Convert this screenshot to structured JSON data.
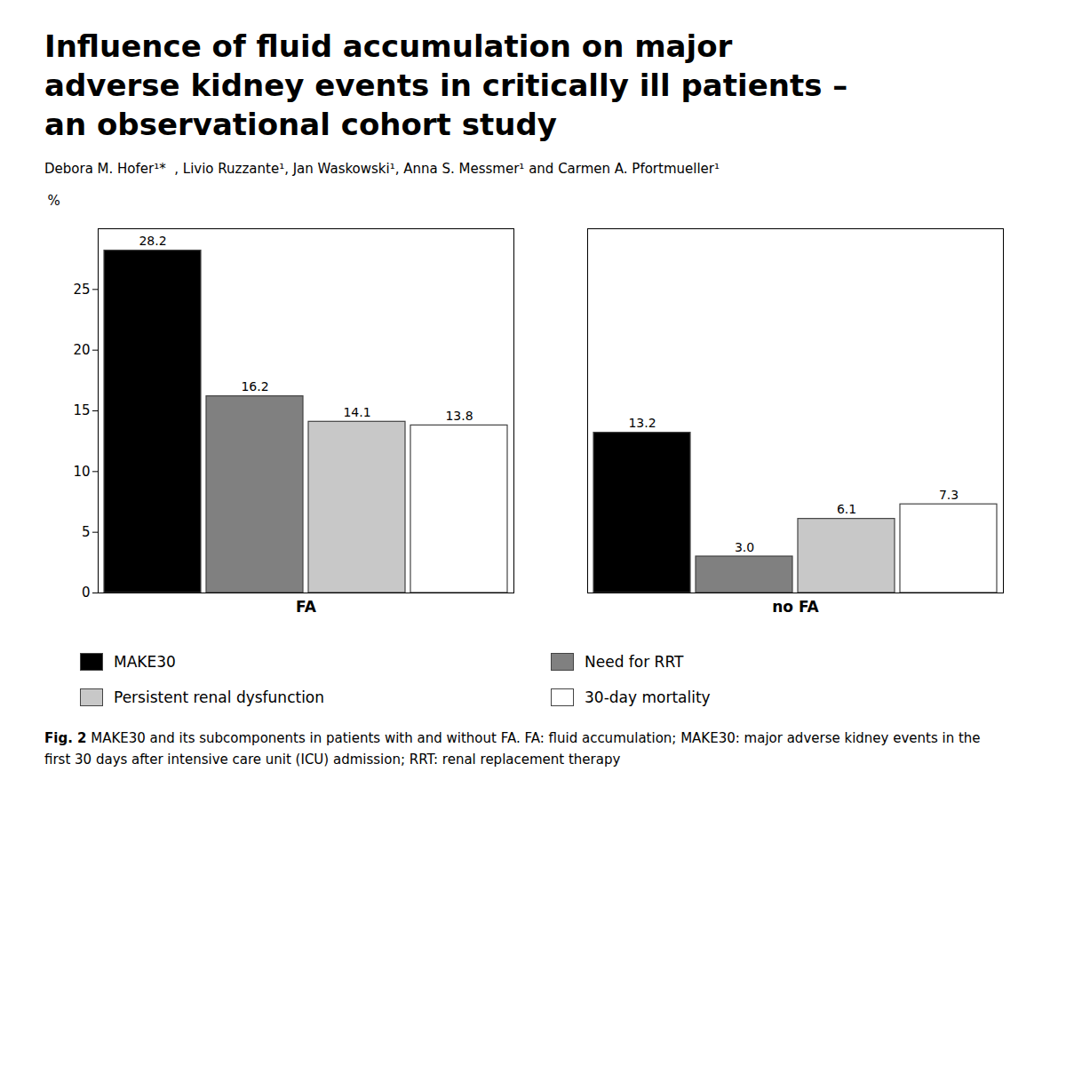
{
  "chart_data": {
    "type": "bar",
    "title": "Influence of fluid accumulation on major\nadverse kidney events in critically ill patients –\nan observational cohort study",
    "subtitle": "Debora M. Hofer¹*  , Livio Ruzzante¹, Jan Waskowski¹, Anna S. Messmer¹ and Carmen A. Pfortmueller¹",
    "ylabel": "%",
    "categories": [
      "FA",
      "no FA"
    ],
    "series": [
      {
        "name": "MAKE30",
        "color": "#000000",
        "values": [
          28.2,
          13.2
        ],
        "value_labels": [
          "28.2",
          "13.2"
        ]
      },
      {
        "name": "Need for RRT",
        "color": "#808080",
        "values": [
          16.2,
          3.0
        ],
        "value_labels": [
          "16.2",
          "3.0"
        ]
      },
      {
        "name": "Persistent renal dysfunction",
        "color": "#c8c8c8",
        "values": [
          14.1,
          6.1
        ],
        "value_labels": [
          "14.1",
          "6.1"
        ]
      },
      {
        "name": "30-day mortality",
        "color": "#ffffff",
        "values": [
          13.8,
          7.3
        ],
        "value_labels": [
          "13.8",
          "7.3"
        ]
      }
    ],
    "ylim": [
      0,
      30
    ],
    "yticks": [
      0,
      5,
      10,
      15,
      20,
      25
    ],
    "grid": false,
    "legend": "bottom",
    "data_labels": true,
    "caption": {
      "label": "Fig. 2",
      "text": "MAKE30 and its subcomponents in patients with and without FA. FA: fluid accumulation; MAKE30: major adverse kidney events in the first 30 days after intensive care unit (ICU) admission; RRT: renal replacement therapy"
    }
  }
}
